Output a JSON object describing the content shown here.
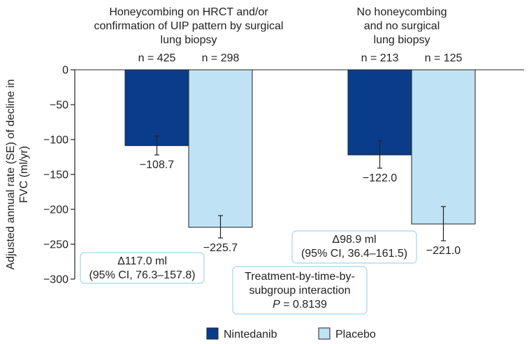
{
  "chart_data": {
    "type": "bar",
    "ylabel": "Adjusted annual rate (SE) of decline in FVC (ml/yr)",
    "ylim": [
      -300,
      0
    ],
    "yticks": [
      0,
      -50,
      -100,
      -150,
      -200,
      -250,
      -300
    ],
    "grid": false,
    "legend_position": "bottom",
    "groups": [
      {
        "title_lines": [
          "Honeycombing on HRCT and/or",
          "confirmation of UIP pattern by surgical",
          "lung biopsy"
        ],
        "bars": [
          {
            "series": "Nintedanib",
            "n_label": "n = 425",
            "value": -108.7,
            "value_label": "−108.7",
            "se_low": -122.0,
            "se_high": -95.0
          },
          {
            "series": "Placebo",
            "n_label": "n = 298",
            "value": -225.7,
            "value_label": "−225.7",
            "se_low": -241.0,
            "se_high": -209.0
          }
        ],
        "difference_lines": [
          "Δ117.0 ml",
          "(95% CI, 76.3–157.8)"
        ]
      },
      {
        "title_lines": [
          "No honeycombing",
          "and no surgical",
          "lung biopsy"
        ],
        "bars": [
          {
            "series": "Nintedanib",
            "n_label": "n = 213",
            "value": -122.0,
            "value_label": "−122.0",
            "se_low": -141.0,
            "se_high": -102.0
          },
          {
            "series": "Placebo",
            "n_label": "n = 125",
            "value": -221.0,
            "value_label": "−221.0",
            "se_low": -245.0,
            "se_high": -196.0
          }
        ],
        "difference_lines": [
          "Δ98.9 ml",
          "(95% CI, 36.4–161.5)"
        ]
      }
    ],
    "interaction_lines": [
      "Treatment-by-time-by-",
      "subgroup interaction",
      "P = 0.8139"
    ],
    "series": [
      {
        "name": "Nintedanib",
        "color": "#0a3c8c"
      },
      {
        "name": "Placebo",
        "color": "#bfe2f5"
      }
    ]
  }
}
